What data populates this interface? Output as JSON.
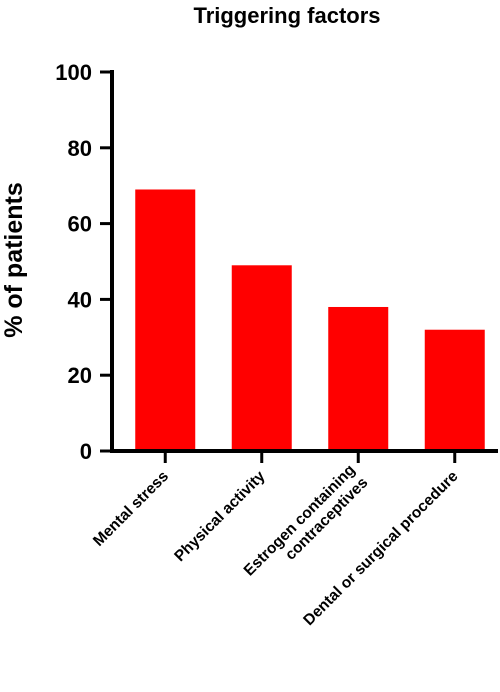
{
  "chart_data": {
    "type": "bar",
    "title": "Triggering factors",
    "xlabel": "",
    "ylabel": "% of patients",
    "ylim": [
      0,
      100
    ],
    "yticks": [
      0,
      20,
      40,
      60,
      80,
      100
    ],
    "categories": [
      [
        "Mental stress"
      ],
      [
        "Physical activity"
      ],
      [
        "Estrogen containing",
        "contraceptives"
      ],
      [
        "Dental or surgical procedure"
      ]
    ],
    "values": [
      69,
      49,
      38,
      32
    ],
    "bar_color": "#ff0000",
    "grid": false,
    "legend": "none"
  }
}
